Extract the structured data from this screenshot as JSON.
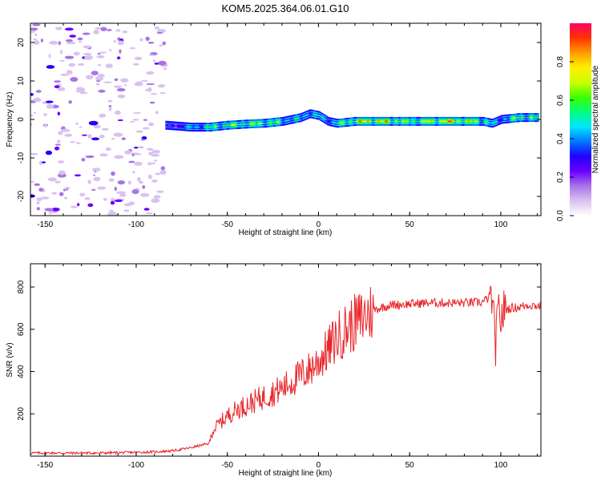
{
  "title": "KOM5.2025.364.06.01.G10",
  "colors": {
    "snr_line": "#e8262a",
    "colormap": [
      "#ffffff",
      "#d9c2f0",
      "#a875e6",
      "#6a00ff",
      "#2200ff",
      "#0077ff",
      "#00e5ff",
      "#00ff7f",
      "#3dff00",
      "#ccff00",
      "#ffee00",
      "#ff9d00",
      "#ff3300",
      "#ff0066"
    ]
  },
  "chart_data": [
    {
      "type": "heatmap",
      "xlabel": "Height of straight line (km)",
      "ylabel": "Frequency (Hz)",
      "xlim": [
        -158,
        122
      ],
      "ylim": [
        -25,
        25
      ],
      "xticks": [
        -150,
        -100,
        -50,
        0,
        50,
        100
      ],
      "yticks": [
        -20,
        -10,
        0,
        10,
        20
      ],
      "colorbar": {
        "label": "Normalized spectral amplitude",
        "range": [
          0,
          1
        ],
        "ticks": [
          "0.0",
          "0.2",
          "0.4",
          "0.6",
          "0.8"
        ]
      },
      "noise_region_x": [
        -158,
        -84
      ],
      "ridge": {
        "x": [
          -84,
          -70,
          -60,
          -50,
          -40,
          -30,
          -20,
          -10,
          -5,
          0,
          5,
          10,
          20,
          30,
          40,
          50,
          60,
          70,
          80,
          90,
          95,
          100,
          110,
          120
        ],
        "freq_hz": [
          -1.5,
          -2.0,
          -2.0,
          -1.5,
          -1.2,
          -1.0,
          -0.5,
          0.5,
          1.5,
          1.0,
          -0.5,
          -1.0,
          -0.5,
          -0.5,
          -0.5,
          -0.5,
          -0.5,
          -0.5,
          -0.5,
          -0.5,
          -1.0,
          0.0,
          0.5,
          0.5
        ],
        "amplitude": [
          0.3,
          0.5,
          0.6,
          0.7,
          0.7,
          0.7,
          0.6,
          0.5,
          0.6,
          0.5,
          0.5,
          0.6,
          0.8,
          0.9,
          0.8,
          0.7,
          0.8,
          0.9,
          0.8,
          0.7,
          0.5,
          0.5,
          0.7,
          0.6
        ]
      }
    },
    {
      "type": "line",
      "xlabel": "Height of straight line (km)",
      "ylabel": "SNR (v/v)",
      "xlim": [
        -158,
        122
      ],
      "ylim": [
        0,
        910
      ],
      "xticks": [
        -150,
        -100,
        -50,
        0,
        50,
        100
      ],
      "yticks": [
        200,
        400,
        600,
        800
      ],
      "series": [
        {
          "x": [
            -158,
            -140,
            -120,
            -100,
            -90,
            -80,
            -70,
            -65,
            -60,
            -58,
            -55,
            -50,
            -45,
            -40,
            -35,
            -30,
            -25,
            -20,
            -15,
            -10,
            -5,
            0,
            5,
            10,
            15,
            20,
            25,
            30,
            35,
            40,
            50,
            60,
            70,
            80,
            90,
            95,
            97,
            99,
            100,
            102,
            105,
            110,
            115,
            122
          ],
          "values": [
            15,
            15,
            15,
            18,
            20,
            25,
            40,
            50,
            60,
            120,
            150,
            190,
            220,
            240,
            260,
            280,
            300,
            320,
            350,
            380,
            410,
            450,
            500,
            560,
            600,
            630,
            660,
            690,
            705,
            715,
            720,
            725,
            725,
            725,
            728,
            760,
            520,
            700,
            650,
            690,
            700,
            705,
            715,
            710
          ]
        }
      ]
    }
  ]
}
